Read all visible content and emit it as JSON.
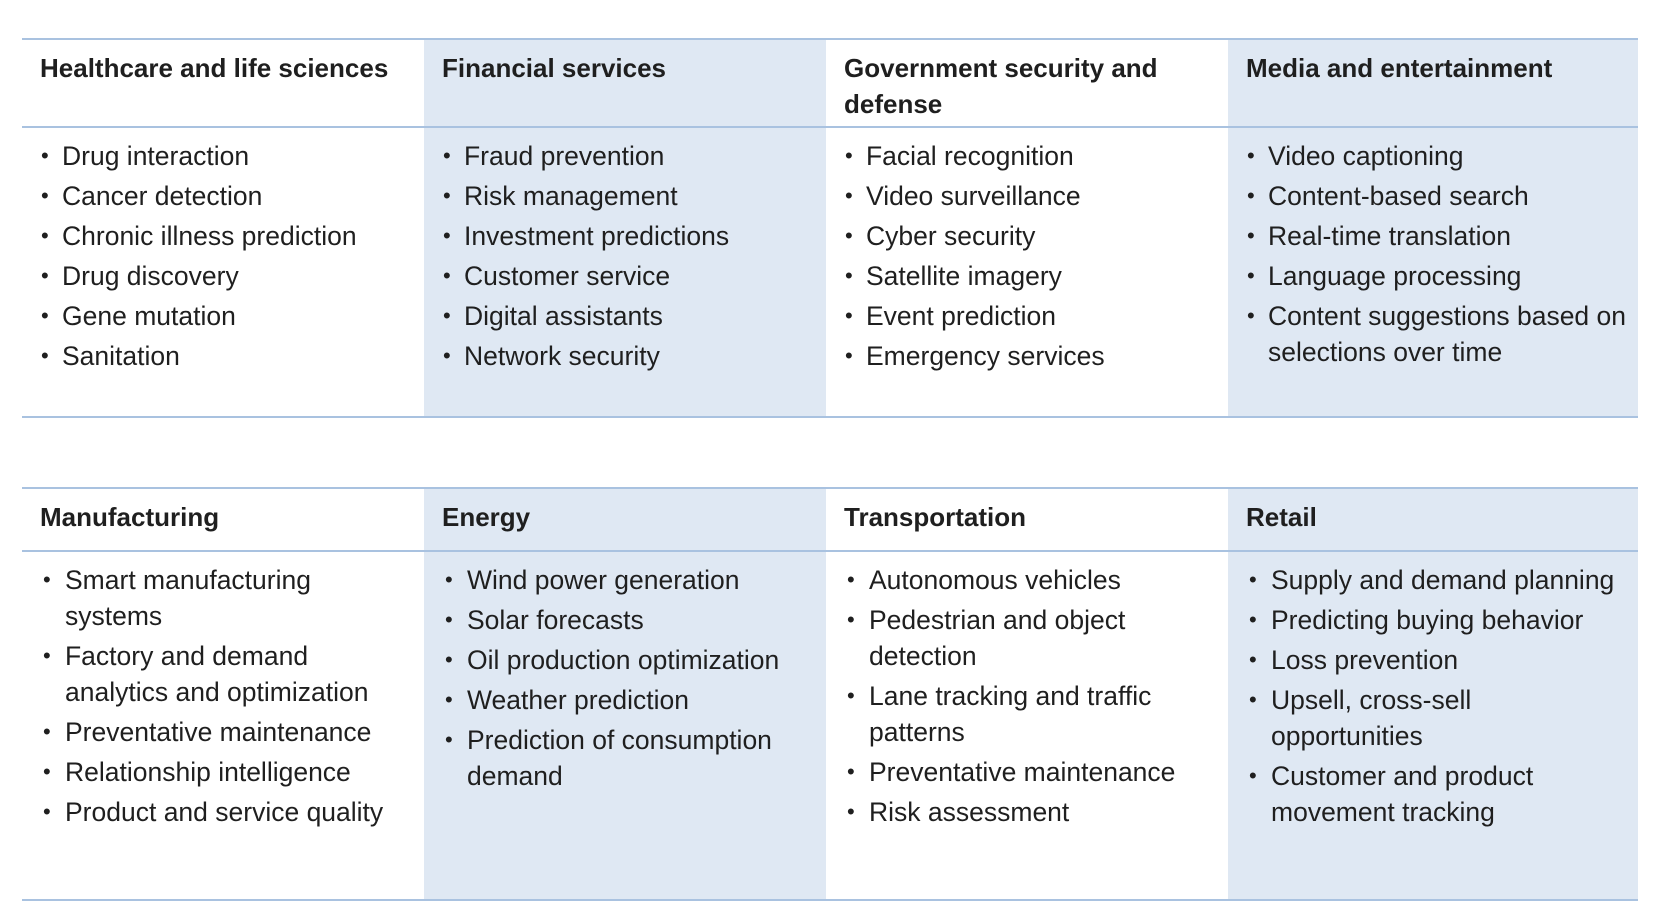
{
  "top_row": [
    {
      "heading": "Healthcare and life sciences",
      "items": [
        "Drug interaction",
        "Cancer detection",
        "Chronic illness prediction",
        "Drug discovery",
        "Gene mutation",
        "Sanitation"
      ]
    },
    {
      "heading": "Financial services",
      "items": [
        "Fraud prevention",
        "Risk management",
        "Investment predictions",
        "Customer service",
        "Digital assistants",
        "Network security"
      ]
    },
    {
      "heading": "Government security and defense",
      "items": [
        "Facial recognition",
        "Video surveillance",
        "Cyber security",
        "Satellite imagery",
        "Event prediction",
        "Emergency services"
      ]
    },
    {
      "heading": "Media and entertainment",
      "items": [
        "Video captioning",
        "Content-based search",
        "Real-time translation",
        "Language processing",
        "Content suggestions based on selections over time"
      ]
    }
  ],
  "bottom_row": [
    {
      "heading": "Manufacturing",
      "items": [
        "Smart manufacturing systems",
        "Factory and demand analytics and optimization",
        "Preventative maintenance",
        "Relationship intelligence",
        "Product and service quality"
      ]
    },
    {
      "heading": "Energy",
      "items": [
        "Wind power generation",
        "Solar forecasts",
        "Oil production optimization",
        "Weather prediction",
        "Prediction of consumption demand"
      ]
    },
    {
      "heading": "Transportation",
      "items": [
        "Autonomous vehicles",
        "Pedestrian and object detection",
        "Lane tracking and traffic patterns",
        "Preventative maintenance",
        "Risk assessment"
      ]
    },
    {
      "heading": "Retail",
      "items": [
        "Supply and demand planning",
        "Predicting buying behavior",
        "Loss prevention",
        "Upsell, cross-sell opportunities",
        "Customer and product movement tracking"
      ]
    }
  ]
}
